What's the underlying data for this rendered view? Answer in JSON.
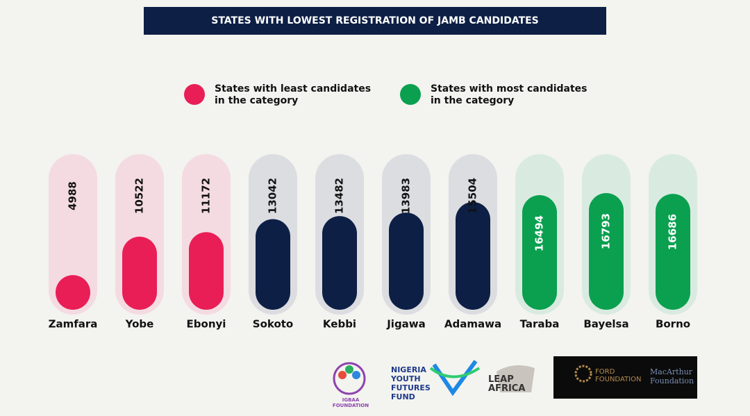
{
  "chart_data": {
    "type": "bar",
    "title": "STATES WITH LOWEST REGISTRATION OF JAMB CANDIDATES",
    "categories": [
      "Zamfara",
      "Yobe",
      "Ebonyi",
      "Sokoto",
      "Kebbi",
      "Jigawa",
      "Adamawa",
      "Taraba",
      "Bayelsa",
      "Borno"
    ],
    "values": [
      4988,
      10522,
      11172,
      13042,
      13482,
      13983,
      15504,
      16494,
      16793,
      16686
    ],
    "colors": [
      "#e91e56",
      "#e91e56",
      "#e91e56",
      "#0d1f45",
      "#0d1f45",
      "#0d1f45",
      "#0d1f45",
      "#0aa04f",
      "#0aa04f",
      "#0aa04f"
    ],
    "legend": [
      {
        "name": "States with least candidates in the category",
        "color": "#e91e56"
      },
      {
        "name": "States with most candidates in the category",
        "color": "#0aa04f"
      }
    ]
  },
  "logos": [
    "IGBAA FOUNDATION",
    "NIGERIA YOUTH FUTURES FUND",
    "LEAP AFRICA",
    "FORD FOUNDATION",
    "MacArthur Foundation"
  ]
}
